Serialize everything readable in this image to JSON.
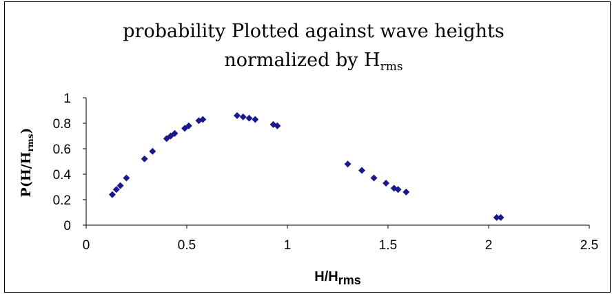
{
  "chart_data": {
    "type": "scatter",
    "title_line1": "probability Plotted against wave heights",
    "title_line2_main": "normalized by H",
    "title_line2_sub": "rms",
    "xlabel_main": "H/H",
    "xlabel_sub": "rms",
    "ylabel_main": "P(H/H",
    "ylabel_sub": "rms",
    "ylabel_close": ")",
    "xlim": [
      0,
      2.5
    ],
    "ylim": [
      0,
      1
    ],
    "x_ticks": [
      "0",
      "0.5",
      "1",
      "1.5",
      "2",
      "2.5"
    ],
    "y_ticks": [
      "0",
      "0.2",
      "0.4",
      "0.6",
      "0.8",
      "1"
    ],
    "grid": false,
    "marker_color": "#1a1a8c",
    "marker": "diamond",
    "x": [
      0.13,
      0.15,
      0.17,
      0.2,
      0.29,
      0.33,
      0.4,
      0.42,
      0.44,
      0.49,
      0.51,
      0.56,
      0.58,
      0.75,
      0.78,
      0.81,
      0.84,
      0.93,
      0.95,
      1.3,
      1.37,
      1.43,
      1.49,
      1.53,
      1.55,
      1.59,
      2.04,
      2.06
    ],
    "y": [
      0.24,
      0.28,
      0.31,
      0.37,
      0.52,
      0.58,
      0.68,
      0.7,
      0.72,
      0.76,
      0.78,
      0.82,
      0.83,
      0.86,
      0.85,
      0.84,
      0.83,
      0.79,
      0.78,
      0.48,
      0.43,
      0.37,
      0.33,
      0.29,
      0.28,
      0.26,
      0.06,
      0.06
    ]
  }
}
